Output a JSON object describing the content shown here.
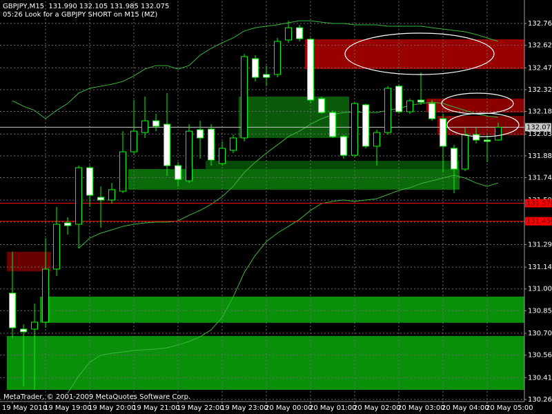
{
  "chart_data": {
    "type": "candlestick",
    "title": "GBPJPY,M15  131.990 132.105 131.985 132.075",
    "subtitle": "05:26 Look for a GBPJPY SHORT on M15 (MZ)",
    "footer": "MetaTrader, © 2001-2009 MetaQuotes Software Corp.",
    "categories": [
      "19 May 2010",
      null,
      null,
      "19 May 19:00",
      null,
      null,
      null,
      "19 May 20:00",
      null,
      null,
      null,
      "19 May 21:00",
      null,
      null,
      null,
      "19 May 22:00",
      null,
      null,
      null,
      "19 May 23:00",
      null,
      null,
      null,
      "20 May 00:00",
      null,
      null,
      null,
      "20 May 01:00",
      null,
      null,
      null,
      "20 May 02:00",
      null,
      null,
      null,
      "20 May 03:00",
      null,
      null,
      null,
      "20 May 04:00",
      null,
      null,
      null,
      "20 May 05:00",
      null
    ],
    "open": [
      130.972,
      130.733,
      130.733,
      130.779,
      131.132,
      131.439,
      131.43,
      131.806,
      131.609,
      131.591,
      131.65,
      131.912,
      132.04,
      132.118,
      132.095,
      131.82,
      131.719,
      132.059,
      132.063,
      131.834,
      131.921,
      132.004,
      132.531,
      132.426,
      132.426,
      132.655,
      132.737,
      132.66,
      132.265,
      132.173,
      132.013,
      131.889,
      132.224,
      131.949,
      132.04,
      132.348,
      132.178,
      132.256,
      132.233,
      132.132,
      131.935,
      131.797,
      132.026,
      131.99,
      131.99
    ],
    "high": [
      131.247,
      130.765,
      130.903,
      131.338,
      131.545,
      131.476,
      131.82,
      131.82,
      131.682,
      131.705,
      132.049,
      132.256,
      132.279,
      132.164,
      132.302,
      131.843,
      132.095,
      132.118,
      132.095,
      131.981,
      132.026,
      132.563,
      132.554,
      132.485,
      132.669,
      132.783,
      132.756,
      132.669,
      132.279,
      132.187,
      132.026,
      132.242,
      132.233,
      132.059,
      132.348,
      132.361,
      132.265,
      132.439,
      132.256,
      132.164,
      131.958,
      132.072,
      132.072,
      132.026,
      132.105
    ],
    "low": [
      130.673,
      130.352,
      130.329,
      130.742,
      131.086,
      131.361,
      131.27,
      131.545,
      131.407,
      131.568,
      131.637,
      131.889,
      132.004,
      132.049,
      131.751,
      131.682,
      131.705,
      131.866,
      131.82,
      131.82,
      131.903,
      131.981,
      132.38,
      132.348,
      132.407,
      132.637,
      132.646,
      132.233,
      132.164,
      132.004,
      131.866,
      131.875,
      131.935,
      131.82,
      132.026,
      132.164,
      132.164,
      132.224,
      132.118,
      131.774,
      131.637,
      131.783,
      131.967,
      131.843,
      131.985
    ],
    "close": [
      130.742,
      130.715,
      130.779,
      131.132,
      131.43,
      131.421,
      131.806,
      131.623,
      131.591,
      131.66,
      131.912,
      132.049,
      132.118,
      132.082,
      131.82,
      131.728,
      132.049,
      132.004,
      131.857,
      131.935,
      132.004,
      132.545,
      132.407,
      132.407,
      132.646,
      132.737,
      132.664,
      132.256,
      132.173,
      132.013,
      131.889,
      132.233,
      131.949,
      132.04,
      132.334,
      132.178,
      132.251,
      132.242,
      132.132,
      131.949,
      131.797,
      132.026,
      131.99,
      131.981,
      132.075
    ],
    "ylim": [
      130.251,
      132.912
    ],
    "yticks": [
      132.765,
      {
        "value": 132.62,
        "label": "132.620"
      },
      {
        "value": 132.47,
        "label": "132.470"
      },
      132.325,
      {
        "value": 132.18,
        "label": "132.180"
      },
      {
        "value": 132.03,
        "label": "132.030"
      },
      131.885,
      {
        "value": 131.74,
        "label": "131.740"
      },
      {
        "value": 131.59,
        "label": "131.590"
      },
      131.445,
      131.295,
      131.145,
      {
        "value": 131.0,
        "label": "131.000"
      },
      130.855,
      130.705,
      {
        "value": 130.56,
        "label": "130.560"
      },
      {
        "value": 130.41,
        "label": "130.410"
      },
      130.265
    ],
    "grid": true,
    "colors": {
      "background": "#000000",
      "grid": "#6e6e6e",
      "axis": "#a0a0a0",
      "wick": "#00ff00",
      "bull": "#000000",
      "bear": "#ffffff"
    },
    "lines": [
      {
        "color": "#3cb83c",
        "values": [
          132.251,
          132.215,
          132.187,
          132.132,
          132.187,
          132.233,
          132.302,
          132.334,
          132.348,
          132.361,
          132.38,
          132.416,
          132.462,
          132.485,
          132.485,
          132.462,
          132.485,
          132.554,
          132.6,
          132.637,
          132.669,
          132.715,
          132.737,
          132.747,
          132.756,
          132.77,
          132.783,
          132.783,
          132.774,
          132.765,
          132.765,
          132.756,
          132.756,
          132.756,
          132.747,
          132.747,
          132.747,
          132.747,
          132.737,
          132.728,
          132.719,
          132.71,
          132.692,
          132.669,
          132.646
        ]
      },
      {
        "color": "#3cb83c",
        "values": [
          null,
          null,
          null,
          null,
          null,
          null,
          131.27,
          131.338,
          131.371,
          131.393,
          131.416,
          131.43,
          131.439,
          131.444,
          131.444,
          131.453,
          131.49,
          131.522,
          131.563,
          131.614,
          131.682,
          131.774,
          131.843,
          131.903,
          131.958,
          132.013,
          132.049,
          132.095,
          132.132,
          132.159,
          132.173,
          132.178,
          132.173,
          132.173,
          132.187,
          132.201,
          132.219,
          132.233,
          132.242,
          132.233,
          132.21,
          132.187,
          132.164,
          132.15,
          132.141
        ]
      },
      {
        "color": "#3cb83c",
        "values": [
          null,
          null,
          null,
          null,
          null,
          130.306,
          130.421,
          130.513,
          130.559,
          130.572,
          130.581,
          130.591,
          130.595,
          130.6,
          130.609,
          130.627,
          130.65,
          130.682,
          130.728,
          130.811,
          130.948,
          131.109,
          131.224,
          131.315,
          131.371,
          131.416,
          131.462,
          131.522,
          131.568,
          131.582,
          131.591,
          131.582,
          131.591,
          131.6,
          131.627,
          131.655,
          131.673,
          131.701,
          131.719,
          131.737,
          131.756,
          131.737,
          131.705,
          131.682,
          131.705
        ]
      }
    ],
    "zones": [
      {
        "from": 0,
        "low": 130.329,
        "high": 130.687,
        "color": "#0a8f0a"
      },
      {
        "from": 3,
        "low": 130.775,
        "high": 130.949,
        "color": "#0a8f0a"
      },
      {
        "from": 0,
        "to": 3,
        "low": 131.117,
        "high": 131.247,
        "color": "#6b0000"
      },
      {
        "from": 11,
        "to": 40,
        "low": 131.66,
        "high": 131.797,
        "color": "#0b6b0b"
      },
      {
        "from": 18,
        "to": 40,
        "low": 131.797,
        "high": 131.852,
        "color": "#044a04"
      },
      {
        "from": 21,
        "to": 30,
        "low": 132.004,
        "high": 132.279,
        "color": "#0b5a0b"
      },
      {
        "from": 27,
        "low": 132.462,
        "high": 132.66,
        "color": "#990000"
      },
      {
        "from": 38,
        "low": 132.173,
        "high": 132.265,
        "color": "#8a0000"
      },
      {
        "from": 39,
        "low": 132.022,
        "high": 132.15,
        "color": "#7a0000"
      }
    ],
    "levels": [
      {
        "value": 131.57,
        "label": "131.570",
        "color": "#ff0000"
      },
      {
        "value": 131.45,
        "label": "131.450",
        "color": "#ff0000"
      },
      {
        "value": 132.075,
        "color": "#c8c8c8"
      }
    ]
  }
}
